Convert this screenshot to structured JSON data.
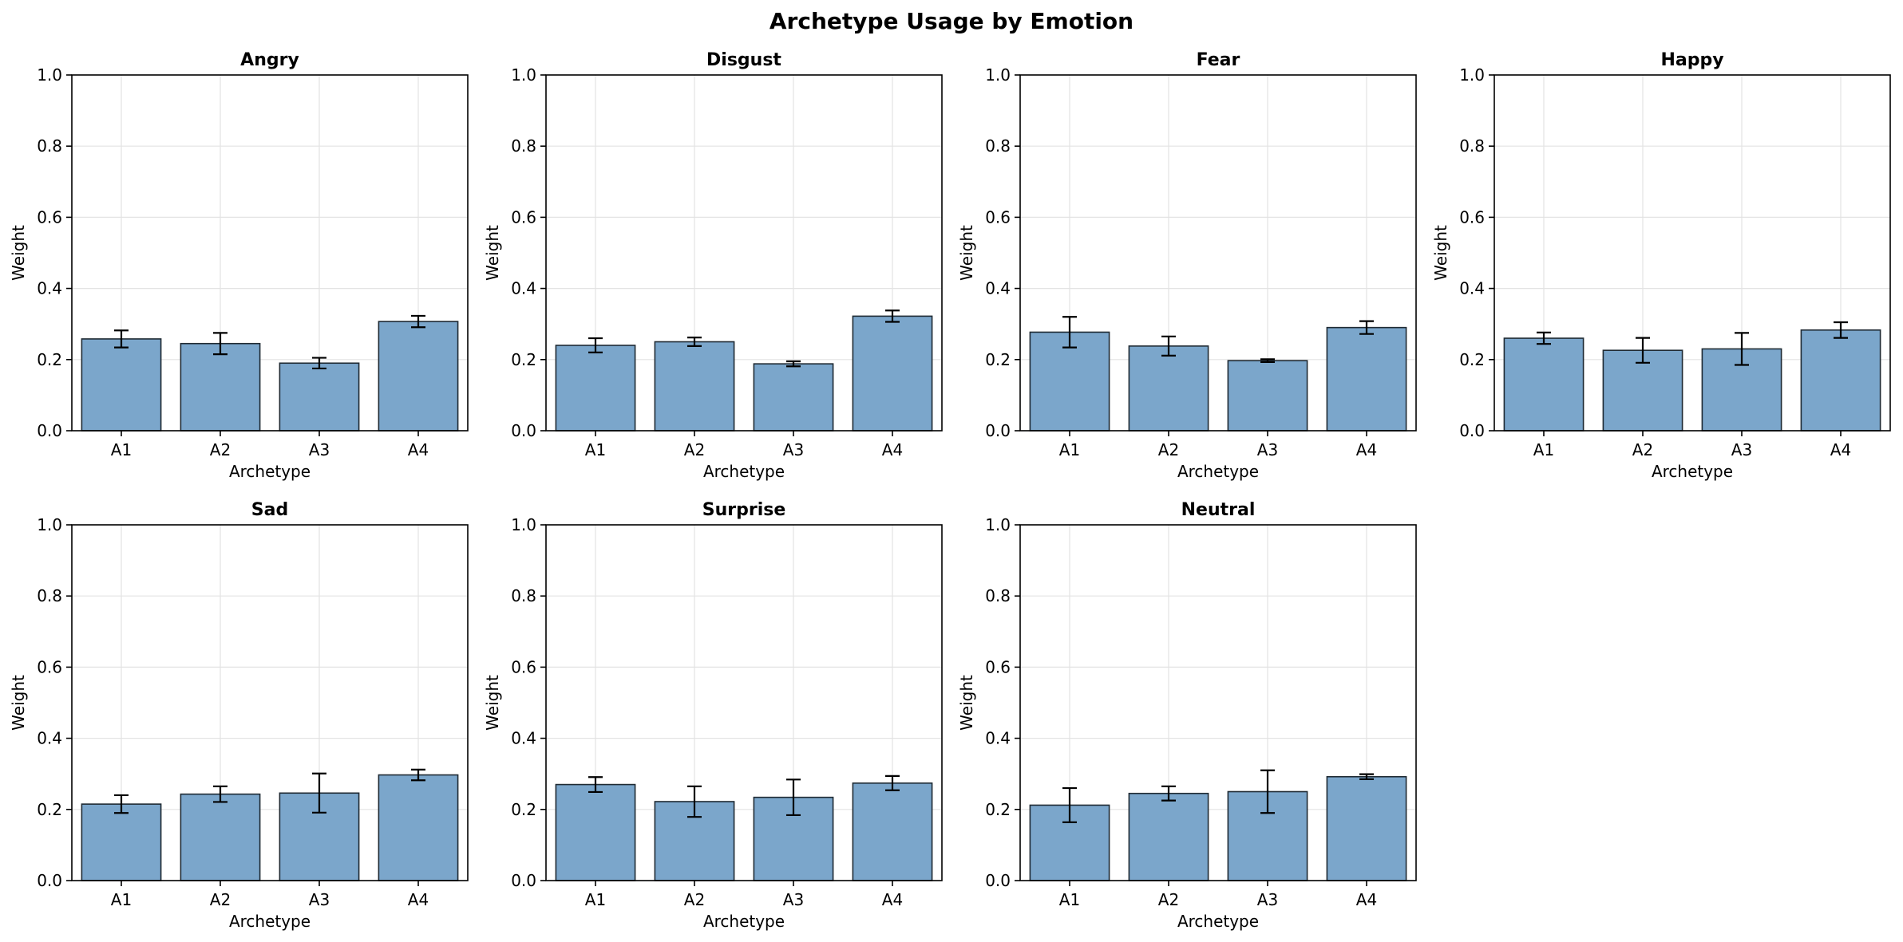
{
  "figure": {
    "title": "Archetype Usage by Emotion"
  },
  "colors": {
    "bar_fill": "#7BA6CB",
    "bar_edge": "#1F2A33",
    "grid": "#E3E3E3",
    "error_bar": "#000000"
  },
  "chart_data": [
    {
      "type": "bar",
      "title": "Angry",
      "categories": [
        "A1",
        "A2",
        "A3",
        "A4"
      ],
      "values": [
        0.258,
        0.245,
        0.19,
        0.307
      ],
      "errors": [
        0.024,
        0.03,
        0.015,
        0.016
      ],
      "xlabel": "Archetype",
      "ylabel": "Weight",
      "ylim": [
        0,
        1.0
      ],
      "yticks": [
        "0.0",
        "0.2",
        "0.4",
        "0.6",
        "0.8",
        "1.0"
      ],
      "grid": true
    },
    {
      "type": "bar",
      "title": "Disgust",
      "categories": [
        "A1",
        "A2",
        "A3",
        "A4"
      ],
      "values": [
        0.24,
        0.25,
        0.188,
        0.322
      ],
      "errors": [
        0.02,
        0.012,
        0.007,
        0.016
      ],
      "xlabel": "Archetype",
      "ylabel": "Weight",
      "ylim": [
        0,
        1.0
      ],
      "yticks": [
        "0.0",
        "0.2",
        "0.4",
        "0.6",
        "0.8",
        "1.0"
      ],
      "grid": true
    },
    {
      "type": "bar",
      "title": "Fear",
      "categories": [
        "A1",
        "A2",
        "A3",
        "A4"
      ],
      "values": [
        0.277,
        0.238,
        0.197,
        0.29
      ],
      "errors": [
        0.043,
        0.027,
        0.004,
        0.018
      ],
      "xlabel": "Archetype",
      "ylabel": "Weight",
      "ylim": [
        0,
        1.0
      ],
      "yticks": [
        "0.0",
        "0.2",
        "0.4",
        "0.6",
        "0.8",
        "1.0"
      ],
      "grid": true
    },
    {
      "type": "bar",
      "title": "Happy",
      "categories": [
        "A1",
        "A2",
        "A3",
        "A4"
      ],
      "values": [
        0.26,
        0.226,
        0.23,
        0.283
      ],
      "errors": [
        0.016,
        0.035,
        0.045,
        0.022
      ],
      "xlabel": "Archetype",
      "ylabel": "Weight",
      "ylim": [
        0,
        1.0
      ],
      "yticks": [
        "0.0",
        "0.2",
        "0.4",
        "0.6",
        "0.8",
        "1.0"
      ],
      "grid": true
    },
    {
      "type": "bar",
      "title": "Sad",
      "categories": [
        "A1",
        "A2",
        "A3",
        "A4"
      ],
      "values": [
        0.215,
        0.243,
        0.246,
        0.297
      ],
      "errors": [
        0.025,
        0.022,
        0.055,
        0.015
      ],
      "xlabel": "Archetype",
      "ylabel": "Weight",
      "ylim": [
        0,
        1.0
      ],
      "yticks": [
        "0.0",
        "0.2",
        "0.4",
        "0.6",
        "0.8",
        "1.0"
      ],
      "grid": true
    },
    {
      "type": "bar",
      "title": "Surprise",
      "categories": [
        "A1",
        "A2",
        "A3",
        "A4"
      ],
      "values": [
        0.27,
        0.222,
        0.234,
        0.274
      ],
      "errors": [
        0.021,
        0.043,
        0.05,
        0.02
      ],
      "xlabel": "Archetype",
      "ylabel": "Weight",
      "ylim": [
        0,
        1.0
      ],
      "yticks": [
        "0.0",
        "0.2",
        "0.4",
        "0.6",
        "0.8",
        "1.0"
      ],
      "grid": true
    },
    {
      "type": "bar",
      "title": "Neutral",
      "categories": [
        "A1",
        "A2",
        "A3",
        "A4"
      ],
      "values": [
        0.212,
        0.245,
        0.25,
        0.292
      ],
      "errors": [
        0.048,
        0.02,
        0.06,
        0.007
      ],
      "xlabel": "Archetype",
      "ylabel": "Weight",
      "ylim": [
        0,
        1.0
      ],
      "yticks": [
        "0.0",
        "0.2",
        "0.4",
        "0.6",
        "0.8",
        "1.0"
      ],
      "grid": true
    }
  ]
}
